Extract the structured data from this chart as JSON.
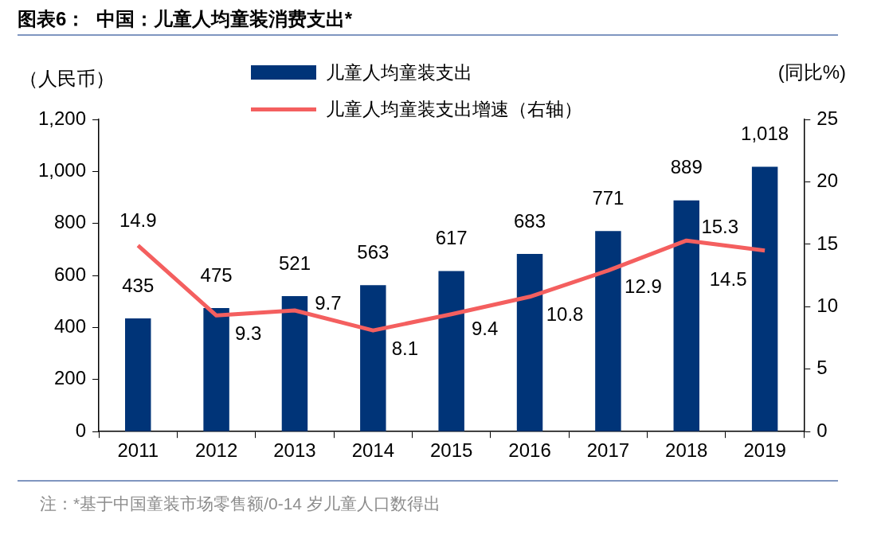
{
  "chart_data": {
    "type": "bar",
    "title": "图表6：  中国：儿童人均童装消费支出*",
    "ylabel": "（人民币）",
    "y2label": "(同比%)",
    "categories": [
      "2011",
      "2012",
      "2013",
      "2014",
      "2015",
      "2016",
      "2017",
      "2018",
      "2019"
    ],
    "series": [
      {
        "name": "儿童人均童装支出",
        "color": "#003478",
        "values": [
          435,
          475,
          521,
          563,
          617,
          683,
          771,
          889,
          1018
        ],
        "value_labels": [
          "435",
          "475",
          "521",
          "563",
          "617",
          "683",
          "771",
          "889",
          "1,018"
        ]
      },
      {
        "name": "儿童人均童装支出增速（右轴）",
        "type": "line",
        "axis": "y2",
        "color": "#f45f5f",
        "values": [
          14.9,
          9.3,
          9.7,
          8.1,
          9.4,
          10.8,
          12.9,
          15.3,
          14.5
        ]
      }
    ],
    "ylim": [
      0,
      1200
    ],
    "yticks": [
      0,
      {
        "value": 200,
        "label": "200"
      },
      {
        "value": 400,
        "label": "400"
      },
      {
        "value": 600,
        "label": "600"
      },
      {
        "value": 800,
        "label": "800"
      },
      {
        "value": 1000,
        "label": "1,000"
      },
      {
        "value": 1200,
        "label": "1,200"
      }
    ],
    "y2lim": [
      0,
      25
    ],
    "y2ticks": [
      0,
      5,
      10,
      15,
      20,
      25
    ],
    "grid": false,
    "legend": "top",
    "marker": "none",
    "line_style": "solid",
    "data_labels": true,
    "annotations": [
      "注：*基于中国童装市场零售额/0-14 岁儿童人口数得出"
    ]
  }
}
